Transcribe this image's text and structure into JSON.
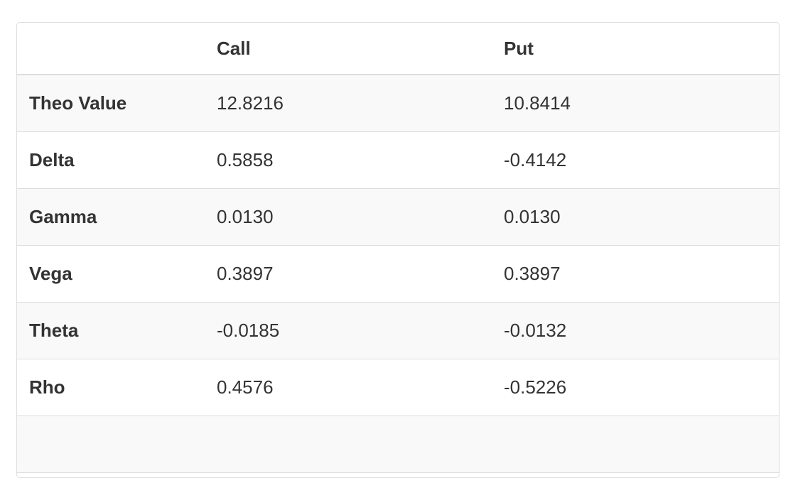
{
  "table": {
    "columns": [
      "Call",
      "Put"
    ],
    "rows": [
      [
        "Theo Value",
        "12.8216",
        "10.8414"
      ],
      [
        "Delta",
        "0.5858",
        "-0.4142"
      ],
      [
        "Gamma",
        "0.0130",
        "0.0130"
      ],
      [
        "Vega",
        "0.3897",
        "0.3897"
      ],
      [
        "Theta",
        "-0.0185",
        "-0.0132"
      ],
      [
        "Rho",
        "0.4576",
        "-0.5226"
      ]
    ]
  }
}
